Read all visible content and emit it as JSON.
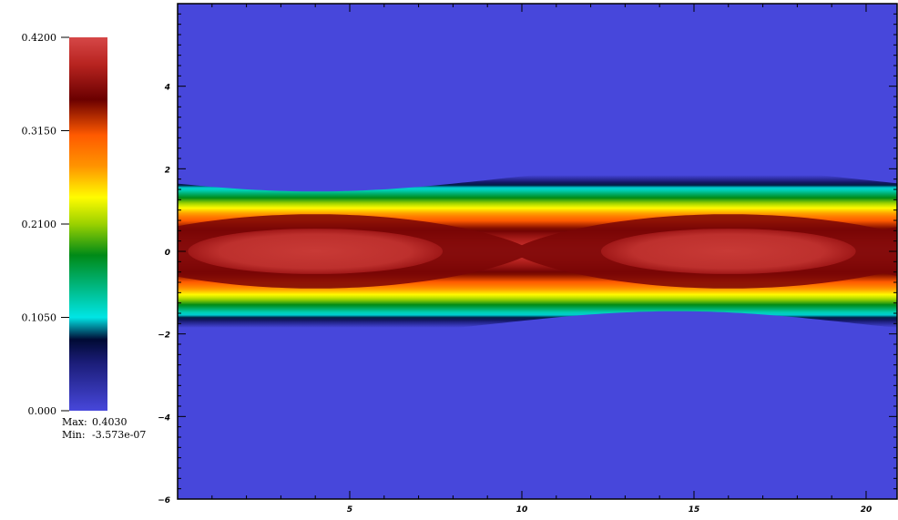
{
  "chart_data": {
    "type": "heatmap",
    "title": "",
    "xlabel": "",
    "ylabel": "",
    "xlim": [
      0,
      20.9
    ],
    "ylim": [
      -6,
      6
    ],
    "x_ticks": [
      5,
      10,
      15,
      20
    ],
    "y_ticks": [
      -6,
      -4,
      -2,
      0,
      2,
      4
    ],
    "x_tick_labels": [
      "5",
      "10",
      "15",
      "20"
    ],
    "y_tick_labels": [
      "−6",
      "−4",
      "−2",
      "0",
      "2",
      "4"
    ],
    "colorbar": {
      "min": 0.0,
      "max": 0.42,
      "tick_values": [
        0.0,
        0.105,
        0.21,
        0.315,
        0.42
      ],
      "tick_labels": [
        "0.000",
        "0.1050",
        "0.2100",
        "0.3150",
        "0.4200"
      ],
      "colors": [
        {
          "value": 0.0,
          "color": "#4747db"
        },
        {
          "value": 0.055,
          "color": "#1a1c76"
        },
        {
          "value": 0.08,
          "color": "#000a34"
        },
        {
          "value": 0.105,
          "color": "#00e5e5"
        },
        {
          "value": 0.145,
          "color": "#00b070"
        },
        {
          "value": 0.175,
          "color": "#008a17"
        },
        {
          "value": 0.21,
          "color": "#9bd100"
        },
        {
          "value": 0.24,
          "color": "#fffc00"
        },
        {
          "value": 0.275,
          "color": "#ff9400"
        },
        {
          "value": 0.31,
          "color": "#ff5a00"
        },
        {
          "value": 0.35,
          "color": "#6b0000"
        },
        {
          "value": 0.39,
          "color": "#b82420"
        },
        {
          "value": 0.42,
          "color": "#d64747"
        }
      ]
    },
    "field_model": {
      "shape": "vortex chain (phase-space island) with two elliptical cores",
      "band_center_y": 0.0,
      "band_half_width": 1.75,
      "wave_amplitude": 0.3,
      "wavelength": 21.0,
      "peak_value": 0.403,
      "island_centers_x": [
        4.0,
        16.0
      ],
      "island_core_half_width_x": 3.7,
      "island_core_half_height_y": 0.55,
      "x_point_x": 10.5
    },
    "stats": {
      "max_label": "Max:",
      "max_value": "0.4030",
      "min_label": "Min:",
      "min_value": "-3.573e-07"
    }
  }
}
